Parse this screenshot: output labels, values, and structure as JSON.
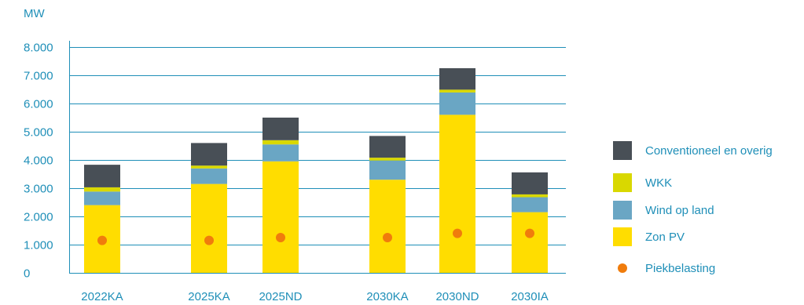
{
  "chart_data": {
    "type": "bar",
    "stacked": true,
    "ylabel": "MW",
    "ylim": [
      0,
      8000
    ],
    "y_ticks": [
      {
        "value": 0,
        "label": "0"
      },
      {
        "value": 1000,
        "label": "1.000"
      },
      {
        "value": 2000,
        "label": "2.000"
      },
      {
        "value": 3000,
        "label": "3.000"
      },
      {
        "value": 4000,
        "label": "4.000"
      },
      {
        "value": 5000,
        "label": "5.000"
      },
      {
        "value": 6000,
        "label": "6.000"
      },
      {
        "value": 7000,
        "label": "7.000"
      },
      {
        "value": 8000,
        "label": "8.000"
      }
    ],
    "grid": true,
    "legend_position": "right",
    "categories": [
      "2022KA",
      "2025KA",
      "2025ND",
      "2030KA",
      "2030ND",
      "2030IA"
    ],
    "series": [
      {
        "name": "Zon PV",
        "color": "#ffdd00",
        "values": [
          2400,
          3150,
          3950,
          3300,
          5600,
          2150
        ]
      },
      {
        "name": "Wind op land",
        "color": "#6aa6c4",
        "values": [
          480,
          550,
          600,
          680,
          790,
          530
        ]
      },
      {
        "name": "WKK",
        "color": "#d9d800",
        "values": [
          150,
          100,
          150,
          100,
          100,
          100
        ]
      },
      {
        "name": "Conventioneel en overig",
        "color": "#484f56",
        "values": [
          800,
          800,
          800,
          770,
          760,
          780
        ]
      }
    ],
    "markers": {
      "name": "Piekbelasting",
      "color": "#f07c0c",
      "values": [
        1150,
        1150,
        1250,
        1250,
        1400,
        1400
      ]
    },
    "legend": [
      {
        "label": "Conventioneel en overig",
        "color": "#484f56",
        "shape": "square"
      },
      {
        "label": "WKK",
        "color": "#d9d800",
        "shape": "square"
      },
      {
        "label": "Wind op land",
        "color": "#6aa6c4",
        "shape": "square"
      },
      {
        "label": "Zon PV",
        "color": "#ffdd00",
        "shape": "square"
      },
      {
        "label": "Piekbelasting",
        "color": "#f07c0c",
        "shape": "dot"
      }
    ]
  }
}
